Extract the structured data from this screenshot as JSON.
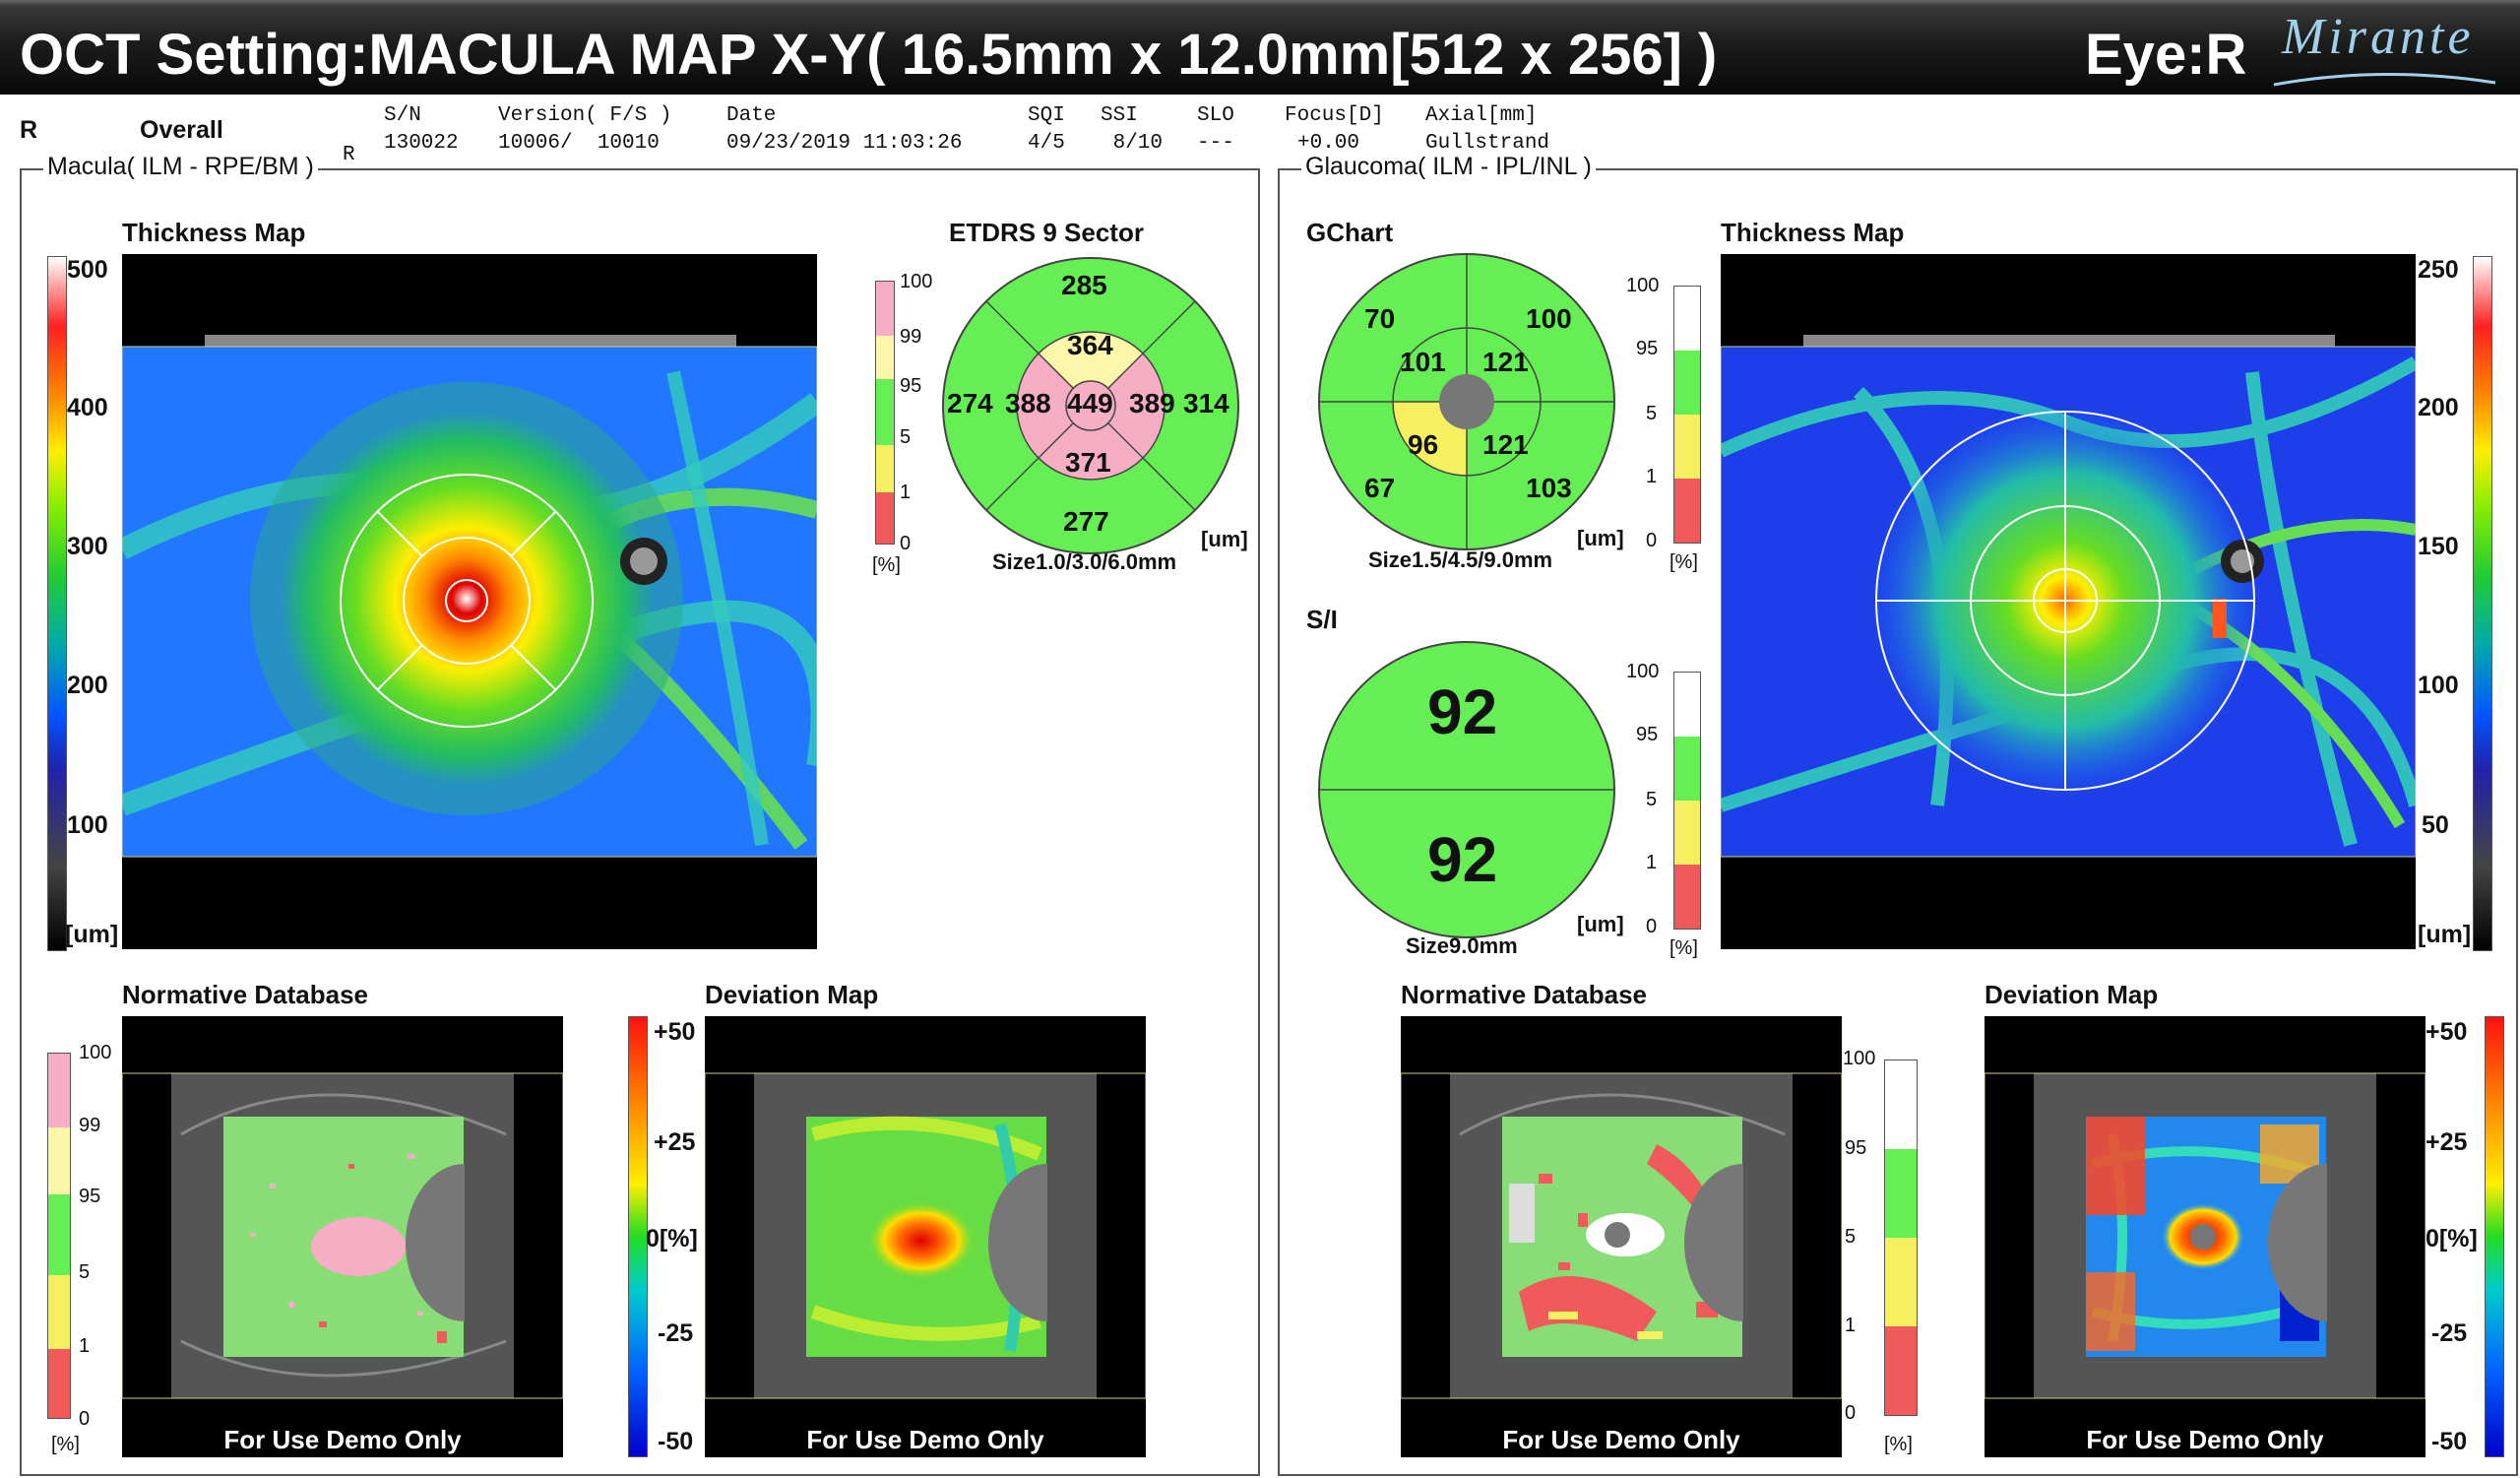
{
  "header": {
    "title": "OCT Setting:MACULA MAP X-Y( 16.5mm x 12.0mm[512 x 256] )",
    "eye": "Eye:R",
    "logo": "Mirante"
  },
  "info": {
    "eye": "R",
    "overall": "Overall",
    "eye_small": "R",
    "headers": {
      "sn": "S/N",
      "version": "Version( F/S )",
      "date": "Date",
      "sqi": "SQI",
      "ssi": "SSI",
      "slo": "SLO",
      "focus": "Focus[D]",
      "axial": "Axial[mm]"
    },
    "values": {
      "sn": "130022",
      "version": "10006/  10010",
      "date": "09/23/2019 11:03:26",
      "sqi": "4/5",
      "ssi": " 8/10",
      "slo": "---",
      "focus": "+0.00",
      "axial": "Gullstrand"
    }
  },
  "macula": {
    "panel_label": "Macula( ILM - RPE/BM )",
    "thickness_title": "Thickness Map",
    "thickness_scale": [
      "500",
      "400",
      "300",
      "200",
      "100",
      "[um]"
    ],
    "etdrs_title": "ETDRS 9 Sector",
    "etdrs_pct": [
      "100",
      "99",
      "95",
      "5",
      "1",
      "0",
      "[%]"
    ],
    "etdrs_values": {
      "superior_outer": "285",
      "superior_inner": "364",
      "nasal_outer": "274",
      "nasal_inner": "388",
      "center": "449",
      "temporal_inner": "389",
      "temporal_outer": "314",
      "inferior_inner": "371",
      "inferior_outer": "277"
    },
    "etdrs_unit": "[um]",
    "etdrs_size": "Size1.0/3.0/6.0mm",
    "normative_title": "Normative Database",
    "normative_scale": [
      "100",
      "99",
      "95",
      "5",
      "1",
      "0",
      "[%]"
    ],
    "deviation_title": "Deviation Map",
    "deviation_scale": [
      "+50",
      "+25",
      "0[%]",
      "-25",
      "-50"
    ],
    "demo_caption_1": "For Use Demo Only",
    "demo_caption_2": "For Use Demo Only"
  },
  "glaucoma": {
    "panel_label": "Glaucoma( ILM - IPL/INL )",
    "gchart_title": "GChart",
    "gchart_values": {
      "outer_tl": "70",
      "outer_tr": "100",
      "inner_tl": "101",
      "inner_tr": "121",
      "inner_bl": "96",
      "inner_br": "121",
      "outer_bl": "67",
      "outer_br": "103"
    },
    "gchart_unit": "[um]",
    "gchart_size": "Size1.5/4.5/9.0mm",
    "gchart_pct": [
      "100",
      "95",
      "5",
      "1",
      "0",
      "[%]"
    ],
    "si_title": "S/I",
    "si_values": {
      "superior": "92",
      "inferior": "92"
    },
    "si_unit": "[um]",
    "si_size": "Size9.0mm",
    "si_pct": [
      "100",
      "95",
      "5",
      "1",
      "0",
      "[%]"
    ],
    "thickness_title": "Thickness Map",
    "thickness_scale": [
      "250",
      "200",
      "150",
      "100",
      "50",
      "[um]"
    ],
    "normative_title": "Normative Database",
    "normative_scale": [
      "100",
      "95",
      "5",
      "1",
      "0",
      "[%]"
    ],
    "deviation_title": "Deviation Map",
    "deviation_scale": [
      "+50",
      "+25",
      "0[%]",
      "-25",
      "-50"
    ],
    "demo_caption_1": "For Use Demo Only",
    "demo_caption_2": "For Use Demo Only"
  },
  "colors": {
    "normal_green": "#66ee55",
    "borderline_yellow": "#f6f060",
    "abnormal_red": "#f05a5a",
    "thick_pink": "#f5aec4",
    "pale_yellow": "#fbf6a8",
    "background_black": "#000000"
  }
}
